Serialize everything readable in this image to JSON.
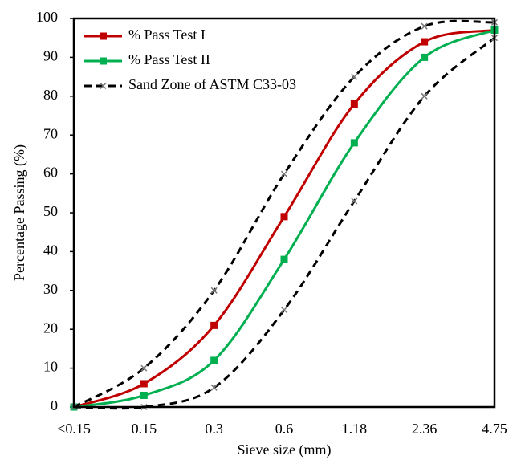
{
  "chart_data": {
    "type": "line",
    "x_label": "Sieve size (mm)",
    "y_label": "Percentage Passing (%)",
    "categories": [
      "<0.15",
      "0.15",
      "0.3",
      "0.6",
      "1.18",
      "2.36",
      "4.75"
    ],
    "ylim": [
      0,
      100
    ],
    "yticks": [
      0,
      10,
      20,
      30,
      40,
      50,
      60,
      70,
      80,
      90,
      100
    ],
    "legend": "upper left",
    "series": [
      {
        "name": "% Pass Test I",
        "color": "#c00000",
        "marker": "square",
        "dash": false,
        "values": [
          0,
          6,
          21,
          49,
          78,
          94,
          97
        ]
      },
      {
        "name": "% Pass Test II",
        "color": "#00b050",
        "marker": "square",
        "dash": false,
        "values": [
          0,
          3,
          12,
          38,
          68,
          90,
          97
        ]
      },
      {
        "name": "Sand Zone of ASTM C33-03",
        "color": "#000000",
        "marker": "x",
        "dash": true,
        "values": [
          0,
          10,
          30,
          60,
          85,
          98,
          99
        ]
      },
      {
        "color": "#000000",
        "marker": "x",
        "dash": true,
        "values": [
          0,
          0,
          5,
          25,
          53,
          80,
          95
        ]
      }
    ]
  }
}
